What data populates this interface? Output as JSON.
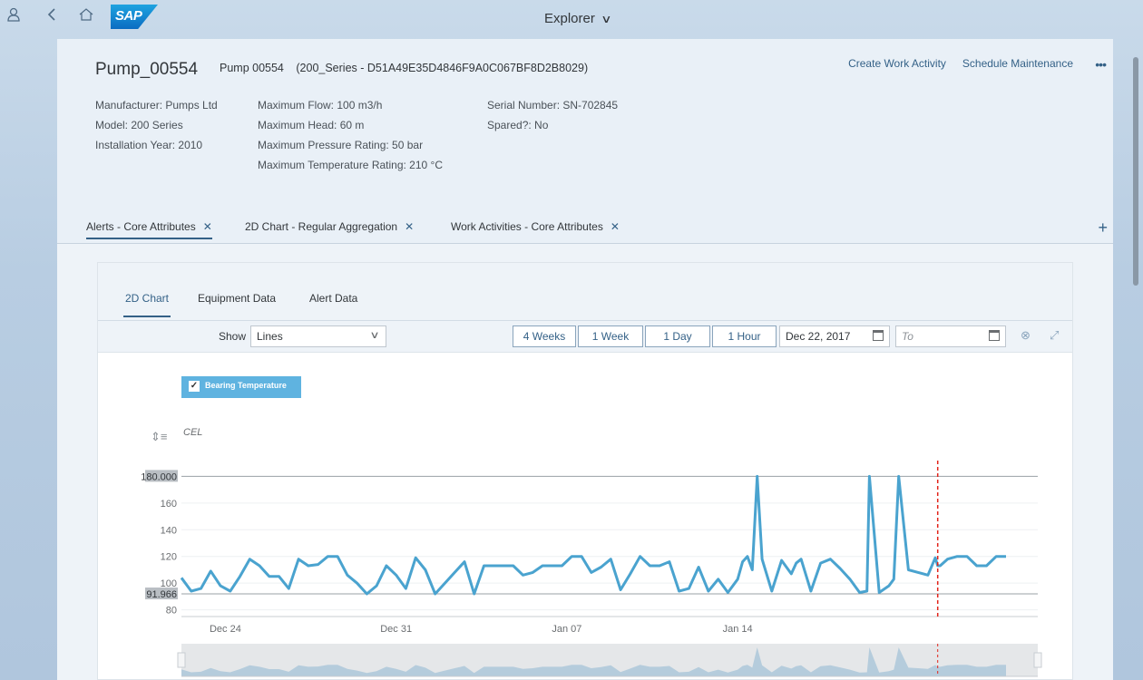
{
  "shell": {
    "title": "Explorer",
    "icons": [
      "user-icon",
      "back-icon",
      "home-icon"
    ],
    "logo_text": "SAP"
  },
  "header": {
    "title": "Pump_00554",
    "name": "Pump 00554",
    "id_text": "(200_Series - D51A49E35D4846F9A0C067BF8D2B8029)",
    "actions": [
      "Create Work Activity",
      "Schedule Maintenance"
    ],
    "more": "•••",
    "attributes": {
      "col1": [
        "Manufacturer: Pumps Ltd",
        "Model: 200 Series",
        "Installation Year: 2010"
      ],
      "col2": [
        "Maximum Flow: 100 m3/h",
        "Maximum Head: 60 m",
        "Maximum Pressure Rating: 50 bar",
        "Maximum Temperature Rating: 210 °C"
      ],
      "col3": [
        "Serial Number: SN-702845",
        "Spared?: No"
      ]
    }
  },
  "sections": [
    {
      "label": "Alerts - Core Attributes",
      "close": "✕"
    },
    {
      "label": "2D Chart - Regular Aggregation",
      "close": "✕"
    },
    {
      "label": "Work Activities - Core Attributes",
      "close": "✕"
    }
  ],
  "add_label": "+",
  "subtabs": [
    "2D Chart",
    "Equipment Data",
    "Alert Data"
  ],
  "toolbar": {
    "show_label": "Show",
    "show_value": "Lines",
    "ranges": [
      "4 Weeks",
      "1 Week",
      "1 Day",
      "1 Hour"
    ],
    "from_date": "Dec 22, 2017",
    "to_placeholder": "To"
  },
  "colors": {
    "accent": "#346187",
    "series": "#4aa3cf",
    "marker": "#e2231a"
  },
  "chart_data": {
    "type": "line",
    "series": [
      {
        "name": "Bearing Temperature",
        "x": [
          0,
          0.4,
          0.8,
          1.2,
          1.6,
          2.0,
          2.4,
          2.8,
          3.2,
          3.6,
          4.0,
          4.4,
          4.8,
          5.2,
          5.6,
          6.0,
          6.4,
          6.8,
          7.2,
          7.6,
          8.0,
          8.4,
          8.8,
          9.2,
          9.6,
          10.0,
          10.4,
          10.8,
          11.2,
          11.6,
          12.0,
          12.4,
          12.8,
          13.2,
          13.6,
          14.0,
          14.4,
          14.8,
          15.2,
          15.6,
          16.0,
          16.4,
          16.8,
          17.2,
          17.6,
          18.0,
          18.4,
          18.8,
          19.2,
          19.6,
          20.0,
          20.4,
          20.8,
          21.2,
          21.6,
          22.0,
          22.4,
          22.8,
          23.0,
          23.2,
          23.4,
          23.6,
          23.8,
          24.2,
          24.6,
          25.0,
          25.2,
          25.4,
          25.8,
          26.2,
          26.6,
          27.0,
          27.4,
          27.8,
          28.1,
          28.2,
          28.6,
          29.0,
          29.2,
          29.4,
          29.8,
          30.2,
          30.6,
          30.9,
          31.0,
          31.1,
          31.4,
          31.8,
          32.2,
          32.6,
          33.0,
          33.4,
          33.8
        ],
        "values": [
          104,
          94,
          96,
          109,
          98,
          94,
          105,
          118,
          113,
          105,
          105,
          96,
          118,
          113,
          114,
          120,
          120,
          106,
          100,
          92,
          98,
          113,
          106,
          96,
          119,
          110,
          92,
          100,
          108,
          116,
          92,
          113,
          113,
          113,
          113,
          106,
          108,
          113,
          113,
          113,
          120,
          120,
          108,
          112,
          118,
          95,
          107,
          120,
          113,
          113,
          116,
          94,
          96,
          112,
          94,
          103,
          93,
          103,
          116,
          120,
          110,
          180,
          118,
          94,
          117,
          107,
          115,
          118,
          94,
          115,
          118,
          111,
          103,
          93,
          94,
          180,
          93,
          98,
          103,
          180,
          110,
          108,
          106,
          119,
          113,
          113,
          118,
          120,
          120,
          113,
          113,
          120,
          120
        ],
        "unit": "CEL"
      }
    ],
    "x_ticks": [
      "Dec 24",
      "Dec 31",
      "Jan 07",
      "Jan 14"
    ],
    "y_ticks": [
      80,
      100,
      120,
      140,
      160
    ],
    "ylim": [
      75,
      185
    ],
    "threshold_labels": [
      "180.000",
      "91.966"
    ],
    "thresholds": [
      180,
      91.966
    ],
    "marker_x": 31.0
  }
}
